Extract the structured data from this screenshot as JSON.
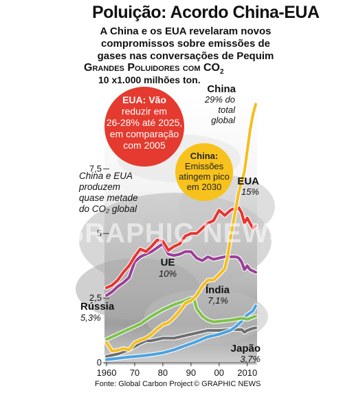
{
  "header": {
    "title": "Poluição: Acordo China-EUA",
    "subtitle": "A China e os EUA revelaram novos compromissos sobre emissões de gases nas conversações de Pequim",
    "chart_heading_part1": "Grandes Poluidores com CO",
    "chart_heading_sub": "2",
    "units": "10 x1.000 milhões ton."
  },
  "footer": {
    "source": "Fonte: Global Carbon Project",
    "credit": "© GRAPHIC NEWS"
  },
  "annotations": {
    "usa_bubble": [
      "EUA: Vão",
      "reduzir em",
      "26-28% até 2025,",
      "em comparação",
      "com 2005"
    ],
    "usa_bubble_color": "#e53a2f",
    "china_bubble": [
      "China:",
      "Emissões",
      "atingem pico",
      "em 2030"
    ],
    "china_bubble_color": "#f7c21b",
    "note": [
      "China e EUA",
      "produzem",
      "quase metade",
      "do CO₂ global"
    ],
    "watermark": "GRAPHIC NEWS"
  },
  "series_labels": {
    "china": {
      "name": "China",
      "share": "29% do",
      "share2": "total",
      "share3": "global"
    },
    "usa": {
      "name": "EUA",
      "share": "15%"
    },
    "eu": {
      "name": "UE",
      "share": "10%"
    },
    "india": {
      "name": "Índia",
      "share": "7,1%"
    },
    "russia": {
      "name": "Rússia",
      "share": "5,3%"
    },
    "japan": {
      "name": "Japão",
      "share": "3,7%"
    }
  },
  "chart_data": {
    "type": "line",
    "title": "Grandes Poluidores com CO2",
    "ylabel": "10 x1.000 milhões ton.",
    "xlim": [
      1960,
      2013
    ],
    "ylim": [
      0,
      11
    ],
    "x_ticks": [
      1960,
      1970,
      1980,
      1990,
      2000,
      2010
    ],
    "x_tick_labels": [
      "1960",
      "70",
      "80",
      "90",
      "00",
      "2010"
    ],
    "y_ticks": [
      0,
      2.5,
      5,
      7.5
    ],
    "y_tick_labels": [
      "0",
      "2,5",
      "5",
      "7,5"
    ],
    "grid": false,
    "series": [
      {
        "name": "China",
        "color": "#f5be1e",
        "x": [
          1960,
          1962,
          1964,
          1966,
          1968,
          1970,
          1972,
          1974,
          1976,
          1978,
          1980,
          1982,
          1984,
          1986,
          1988,
          1990,
          1992,
          1994,
          1996,
          1998,
          2000,
          2002,
          2003,
          2004,
          2005,
          2006,
          2007,
          2008,
          2009,
          2010,
          2011,
          2012,
          2013
        ],
        "y": [
          0.78,
          0.45,
          0.48,
          0.55,
          0.5,
          0.77,
          0.87,
          0.95,
          1.1,
          1.3,
          1.47,
          1.55,
          1.75,
          2.0,
          2.3,
          2.4,
          2.6,
          2.95,
          3.2,
          3.2,
          3.4,
          3.65,
          4.1,
          4.8,
          5.4,
          6.0,
          6.6,
          7.0,
          7.4,
          8.2,
          9.0,
          9.6,
          10.0
        ]
      },
      {
        "name": "EUA",
        "color": "#e8342f",
        "x": [
          1960,
          1962,
          1964,
          1966,
          1968,
          1970,
          1972,
          1974,
          1976,
          1978,
          1980,
          1982,
          1984,
          1986,
          1988,
          1990,
          1992,
          1994,
          1996,
          1998,
          2000,
          2002,
          2004,
          2005,
          2006,
          2007,
          2008,
          2009,
          2010,
          2011,
          2012,
          2013
        ],
        "y": [
          2.9,
          3.0,
          3.2,
          3.5,
          3.75,
          4.1,
          4.4,
          4.3,
          4.5,
          4.75,
          4.7,
          4.35,
          4.5,
          4.6,
          4.9,
          5.0,
          5.0,
          5.2,
          5.4,
          5.5,
          5.9,
          5.7,
          5.9,
          5.95,
          5.9,
          6.0,
          5.8,
          5.4,
          5.6,
          5.4,
          5.2,
          5.3
        ]
      },
      {
        "name": "UE",
        "color": "#9a3e96",
        "x": [
          1960,
          1962,
          1964,
          1966,
          1968,
          1970,
          1972,
          1974,
          1976,
          1978,
          1980,
          1982,
          1984,
          1986,
          1988,
          1990,
          1992,
          1994,
          1996,
          1998,
          2000,
          2002,
          2004,
          2006,
          2007,
          2008,
          2009,
          2010,
          2011,
          2012,
          2013
        ],
        "y": [
          2.6,
          2.75,
          2.95,
          3.1,
          3.3,
          3.9,
          4.1,
          4.2,
          4.3,
          4.45,
          4.6,
          4.2,
          4.15,
          4.2,
          4.3,
          4.3,
          4.05,
          3.95,
          4.1,
          4.0,
          4.05,
          4.1,
          4.1,
          4.1,
          4.05,
          3.9,
          3.6,
          3.75,
          3.6,
          3.55,
          3.5
        ]
      },
      {
        "name": "Índia",
        "color": "#4aa3df",
        "x": [
          1960,
          1964,
          1968,
          1972,
          1976,
          1980,
          1984,
          1988,
          1992,
          1996,
          2000,
          2004,
          2006,
          2008,
          2010,
          2012,
          2013
        ],
        "y": [
          0.12,
          0.17,
          0.22,
          0.26,
          0.31,
          0.38,
          0.5,
          0.66,
          0.82,
          1.0,
          1.1,
          1.25,
          1.4,
          1.6,
          1.85,
          2.0,
          2.2
        ]
      },
      {
        "name": "Rússia",
        "color": "#7fc24a",
        "x": [
          1960,
          1964,
          1968,
          1972,
          1976,
          1980,
          1984,
          1988,
          1990,
          1991,
          1992,
          1994,
          1996,
          1998,
          2000,
          2004,
          2008,
          2010,
          2013
        ],
        "y": [
          0.9,
          1.1,
          1.3,
          1.5,
          1.8,
          2.05,
          2.25,
          2.4,
          2.5,
          2.5,
          2.1,
          1.8,
          1.65,
          1.58,
          1.6,
          1.65,
          1.72,
          1.68,
          1.8
        ]
      },
      {
        "name": "Japão",
        "color": "#6d6e71",
        "x": [
          1960,
          1964,
          1968,
          1972,
          1974,
          1976,
          1980,
          1984,
          1988,
          1992,
          1996,
          2000,
          2004,
          2008,
          2009,
          2010,
          2012,
          2013
        ],
        "y": [
          0.24,
          0.34,
          0.5,
          0.75,
          0.85,
          0.85,
          0.95,
          0.95,
          1.05,
          1.15,
          1.25,
          1.25,
          1.28,
          1.28,
          1.18,
          1.25,
          1.33,
          1.35
        ]
      }
    ]
  }
}
